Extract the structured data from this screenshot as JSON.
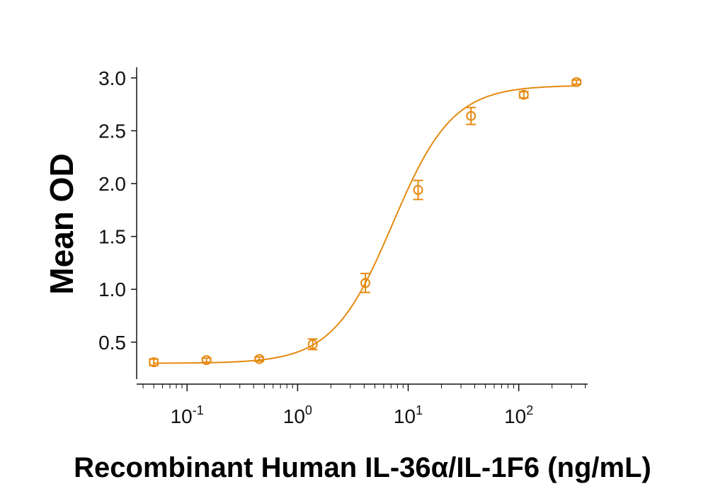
{
  "chart_data": {
    "type": "scatter",
    "title": "",
    "xlabel": "Recombinant Human IL-36α/IL-1F6 (ng/mL)",
    "ylabel": "Mean OD",
    "xscale": "log",
    "xlim": [
      0.035,
      420
    ],
    "ylim": [
      0.15,
      3.1
    ],
    "grid": false,
    "legend": "none",
    "color": "#E58A12",
    "x_ticks": [
      {
        "value": 0.1,
        "base": "10",
        "exp": "-1"
      },
      {
        "value": 1,
        "base": "10",
        "exp": "0"
      },
      {
        "value": 10,
        "base": "10",
        "exp": "1"
      },
      {
        "value": 100,
        "base": "10",
        "exp": "2"
      }
    ],
    "y_ticks": [
      {
        "value": 0.5,
        "label": "0.5"
      },
      {
        "value": 1.0,
        "label": "1.0"
      },
      {
        "value": 1.5,
        "label": "1.5"
      },
      {
        "value": 2.0,
        "label": "2.0"
      },
      {
        "value": 2.5,
        "label": "2.5"
      },
      {
        "value": 3.0,
        "label": "3.0"
      }
    ],
    "points": [
      {
        "x": 0.05,
        "y": 0.31,
        "err": 0.03
      },
      {
        "x": 0.15,
        "y": 0.33,
        "err": 0.02
      },
      {
        "x": 0.45,
        "y": 0.34,
        "err": 0.02
      },
      {
        "x": 1.37,
        "y": 0.48,
        "err": 0.05
      },
      {
        "x": 4.1,
        "y": 1.06,
        "err": 0.09
      },
      {
        "x": 12.3,
        "y": 1.94,
        "err": 0.09
      },
      {
        "x": 37,
        "y": 2.64,
        "err": 0.08
      },
      {
        "x": 111,
        "y": 2.84,
        "err": 0.03
      },
      {
        "x": 333,
        "y": 2.96,
        "err": 0.02
      }
    ],
    "fit": {
      "bottom": 0.3,
      "top": 2.93,
      "ec50": 7.2,
      "hill": 1.6
    }
  }
}
